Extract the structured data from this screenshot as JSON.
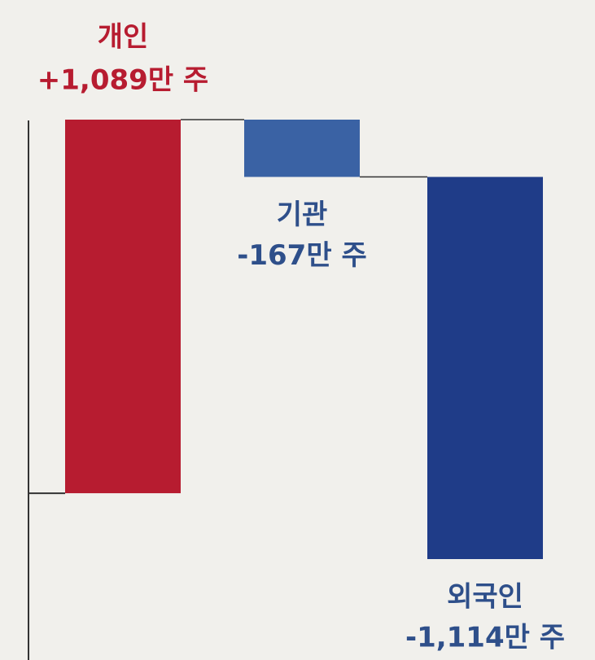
{
  "chart_data": {
    "type": "waterfall",
    "categories": [
      "개인",
      "기관",
      "외국인"
    ],
    "values": [
      1089,
      -167,
      -1114
    ],
    "value_labels": [
      "+1,089만 주",
      "-167만 주",
      "-1,114만 주"
    ],
    "colors": [
      "#b71c30",
      "#3a62a4",
      "#1f3c88"
    ],
    "label_colors": [
      "#b71c30",
      "#2e4f8a",
      "#2e4f8a"
    ]
  }
}
